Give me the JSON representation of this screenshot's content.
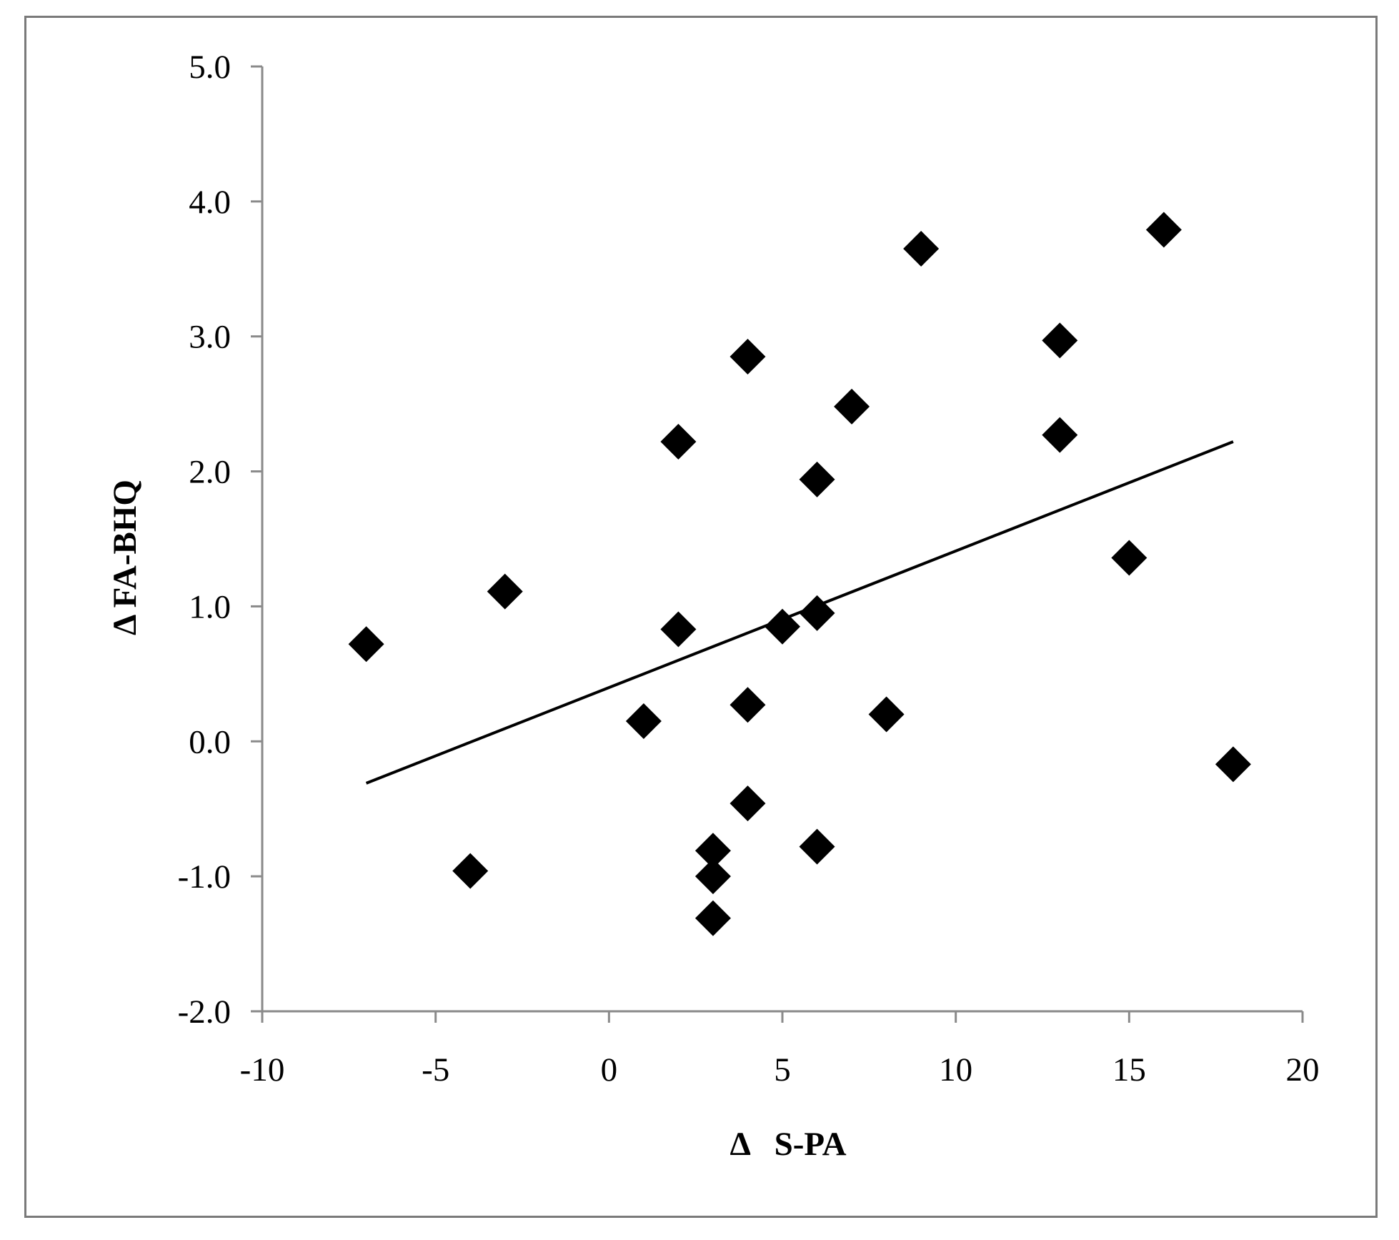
{
  "chart_data": {
    "type": "scatter",
    "title": "",
    "xlabel": "Δ   S-PA",
    "ylabel": "Δ FA-BHQ",
    "xlim": [
      -10,
      20
    ],
    "ylim": [
      -2.0,
      5.0
    ],
    "x_ticks": [
      -10,
      -5,
      0,
      5,
      10,
      15,
      20
    ],
    "x_tick_labels": [
      "-10",
      "-5",
      "0",
      "5",
      "10",
      "15",
      "20"
    ],
    "y_ticks": [
      -2,
      -1,
      0,
      1,
      2,
      3,
      4,
      5
    ],
    "y_tick_labels": [
      "-2.0",
      "-1.0",
      "0.0",
      "1.0",
      "2.0",
      "3.0",
      "4.0",
      "5.0"
    ],
    "grid": false,
    "legend": "none",
    "marker": "diamond",
    "marker_color": "#000000",
    "series": [
      {
        "points": [
          {
            "x": -7,
            "y": 0.72
          },
          {
            "x": -4,
            "y": -0.96
          },
          {
            "x": -3,
            "y": 1.11
          },
          {
            "x": 1,
            "y": 0.15
          },
          {
            "x": 2,
            "y": 2.22
          },
          {
            "x": 2,
            "y": 0.83
          },
          {
            "x": 3,
            "y": -0.81
          },
          {
            "x": 3,
            "y": -1.0
          },
          {
            "x": 3,
            "y": -1.31
          },
          {
            "x": 4,
            "y": 2.85
          },
          {
            "x": 4,
            "y": 0.27
          },
          {
            "x": 4,
            "y": -0.46
          },
          {
            "x": 5,
            "y": 0.85
          },
          {
            "x": 6,
            "y": 1.94
          },
          {
            "x": 6,
            "y": 0.95
          },
          {
            "x": 6,
            "y": -0.78
          },
          {
            "x": 7,
            "y": 2.48
          },
          {
            "x": 8,
            "y": 0.2
          },
          {
            "x": 9,
            "y": 3.65
          },
          {
            "x": 13,
            "y": 2.97
          },
          {
            "x": 13,
            "y": 2.27
          },
          {
            "x": 15,
            "y": 1.36
          },
          {
            "x": 16,
            "y": 3.79
          },
          {
            "x": 18,
            "y": -0.17
          }
        ]
      }
    ],
    "trendline": {
      "type": "linear",
      "x": [
        -7,
        18
      ],
      "y": [
        -0.31,
        2.22
      ],
      "color": "#000000"
    }
  }
}
